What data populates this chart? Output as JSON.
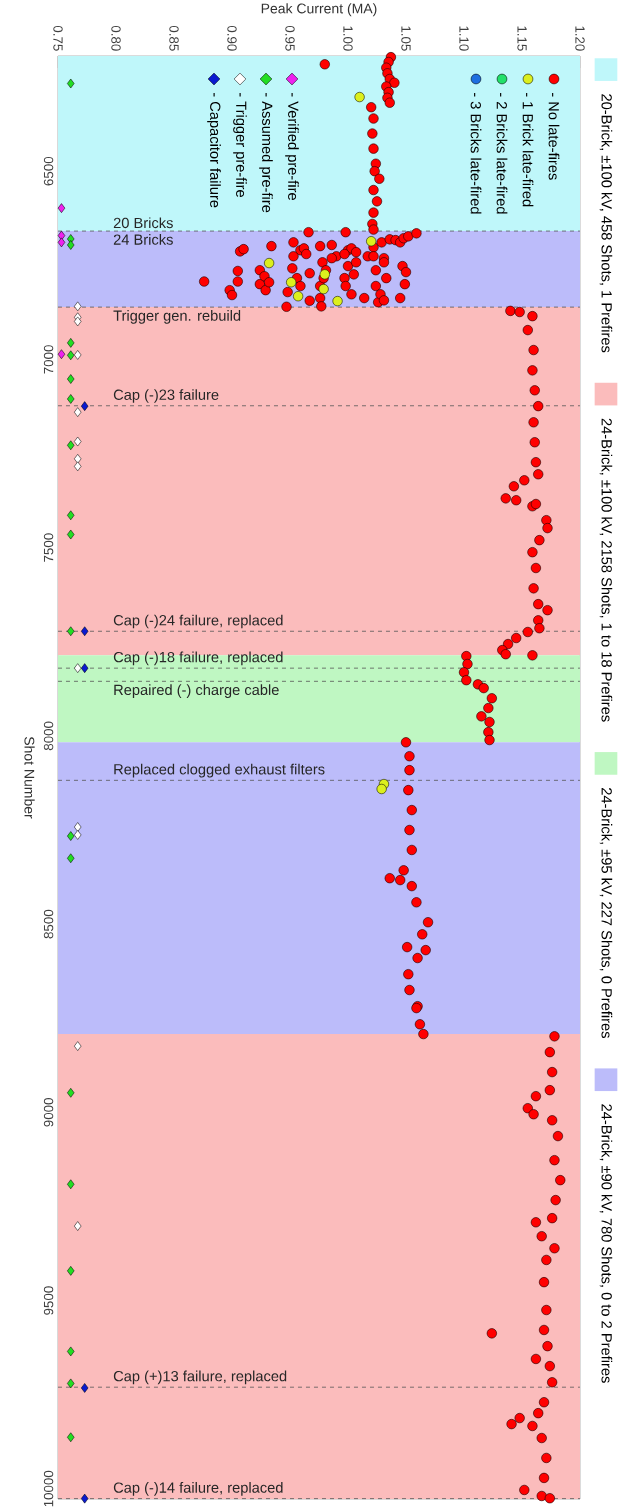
{
  "chart_data": {
    "type": "scatter",
    "xlabel": "Peak Current (MA)",
    "ylabel": "Shot Number",
    "xlim": [
      0.75,
      1.2
    ],
    "ylim": [
      10027,
      6194
    ],
    "xticks": [
      {
        "value": 0.75,
        "label": "0.75"
      },
      {
        "value": 0.8,
        "label": "0.80"
      },
      {
        "value": 0.85,
        "label": "0.85"
      },
      {
        "value": 0.9,
        "label": "0.90"
      },
      {
        "value": 0.95,
        "label": "0.95"
      },
      {
        "value": 1.0,
        "label": "1.00"
      },
      {
        "value": 1.05,
        "label": "1.05"
      },
      {
        "value": 1.1,
        "label": "1.10"
      },
      {
        "value": 1.15,
        "label": "1.15"
      },
      {
        "value": 1.2,
        "label": "1.20"
      }
    ],
    "yticks": [
      {
        "value": 6500,
        "label": "6500"
      },
      {
        "value": 7000,
        "label": "7000"
      },
      {
        "value": 7500,
        "label": "7500"
      },
      {
        "value": 8000,
        "label": "8000"
      },
      {
        "value": 8500,
        "label": "8500"
      },
      {
        "value": 9000,
        "label": "9000"
      },
      {
        "value": 9500,
        "label": "9500"
      },
      {
        "value": 10000,
        "label": "10000"
      }
    ],
    "legend": "top",
    "series": [
      {
        "name": "- No late-fires",
        "color": "#ff0000",
        "marker": "circle",
        "values": [
          6197,
          6210,
          6216,
          6225,
          6240,
          6255,
          6265,
          6275,
          6290,
          6305,
          6318,
          6330,
          6360,
          6400,
          6440,
          6480,
          6500,
          6520,
          6550,
          6580,
          6610,
          6640,
          6655,
          6662,
          6662,
          6713,
          6707,
          6699,
          6689,
          6710,
          6705,
          6720,
          6699,
          6696,
          6726,
          6710,
          6705,
          6715,
          6702,
          6689,
          6681,
          6683,
          6689,
          6678,
          6673,
          6665,
          6726,
          6731,
          6793,
          6816,
          6829,
          6765,
          6793,
          6763,
          6800,
          6779,
          6816,
          6795,
          6860,
          6821,
          6758,
          6726,
          6784,
          6805,
          6844,
          6771,
          6837,
          6859,
          6805,
          6742,
          6784,
          6763,
          6731,
          6720,
          6784,
          6805,
          6752,
          6827,
          6774,
          6742,
          6837,
          6726,
          6763,
          6805,
          6848,
          6827,
          6742,
          6784,
          6837,
          6752,
          6800,
          6768,
          6843,
          6871,
          6874,
          6885,
          6922,
          6975,
          7029,
          7082,
          7124,
          7167,
          7220,
          7273,
          7305,
          7321,
          7337,
          7369,
          7374,
          7390,
          7384,
          7427,
          7448,
          7480,
          7512,
          7554,
          7608,
          7650,
          7666,
          7693,
          7714,
          7724,
          7740,
          7756,
          7772,
          7783,
          7786,
          7788,
          7809,
          7831,
          7852,
          7863,
          7873,
          7900,
          7926,
          7948,
          7963,
          7990,
          8011,
          8017,
          8054,
          8091,
          8144,
          8197,
          8250,
          8303,
          8357,
          8378,
          8383,
          8399,
          8442,
          8495,
          8527,
          8561,
          8569,
          8590,
          8633,
          8675,
          8718,
          8723,
          8766,
          8792,
          8798,
          8840,
          8893,
          8941,
          8957,
          8989,
          9005,
          9021,
          9063,
          9127,
          9180,
          9233,
          9281,
          9292,
          9329,
          9361,
          9392,
          9451,
          9525,
          9578,
          9587,
          9621,
          9655,
          9674,
          9717,
          9770,
          9799,
          9812,
          9828,
          9833,
          9865,
          9918,
          9971,
          10003,
          10019,
          10025
        ],
        "x": [
          1.037,
          1.035,
          0.98,
          1.033,
          1.034,
          1.036,
          1.04,
          1.033,
          1.035,
          1.034,
          1.036,
          1.02,
          1.022,
          1.021,
          1.022,
          1.024,
          1.023,
          1.027,
          1.022,
          1.025,
          1.022,
          1.021,
          1.022,
          0.966,
          0.998,
          0.907,
          0.91,
          0.934,
          0.953,
          0.959,
          0.962,
          0.964,
          0.976,
          0.986,
          0.99,
          1.0,
          1.003,
          1.007,
          1.022,
          1.029,
          1.036,
          1.041,
          1.045,
          1.048,
          1.052,
          1.059,
          1.017,
          1.031,
          0.876,
          0.898,
          0.9,
          0.905,
          0.905,
          0.924,
          0.924,
          0.928,
          0.929,
          0.932,
          0.947,
          0.948,
          0.952,
          0.953,
          0.956,
          0.959,
          0.967,
          0.967,
          0.976,
          0.977,
          0.976,
          0.978,
          0.979,
          0.981,
          0.986,
          0.997,
          0.997,
          0.998,
          1.0,
          1.003,
          1.005,
          1.007,
          1.014,
          1.022,
          1.024,
          1.024,
          1.026,
          1.028,
          1.031,
          1.033,
          1.045,
          1.047,
          1.049,
          1.05,
          1.031,
          1.14,
          1.148,
          1.159,
          1.155,
          1.16,
          1.159,
          1.161,
          1.164,
          1.16,
          1.161,
          1.162,
          1.164,
          1.152,
          1.143,
          1.136,
          1.145,
          1.159,
          1.162,
          1.171,
          1.172,
          1.165,
          1.159,
          1.162,
          1.16,
          1.164,
          1.172,
          1.164,
          1.165,
          1.155,
          1.145,
          1.138,
          1.133,
          1.136,
          1.159,
          1.102,
          1.103,
          1.1,
          1.102,
          1.112,
          1.117,
          1.124,
          1.121,
          1.115,
          1.122,
          1.121,
          1.122,
          1.05,
          1.053,
          1.053,
          1.052,
          1.055,
          1.053,
          1.055,
          1.048,
          1.036,
          1.045,
          1.055,
          1.059,
          1.069,
          1.064,
          1.051,
          1.067,
          1.06,
          1.052,
          1.053,
          1.06,
          1.059,
          1.062,
          1.065,
          1.178,
          1.174,
          1.176,
          1.174,
          1.162,
          1.155,
          1.16,
          1.176,
          1.181,
          1.178,
          1.183,
          1.179,
          1.176,
          1.162,
          1.167,
          1.178,
          1.171,
          1.169,
          1.171,
          1.169,
          1.124,
          1.172,
          1.162,
          1.174,
          1.176,
          1.169,
          1.164,
          1.148,
          1.141,
          1.159,
          1.167,
          1.171,
          1.169,
          1.152,
          1.167,
          1.174
        ]
      },
      {
        "name": "- 1 Brick late-fired",
        "color": "#dcef1e",
        "marker": "circle",
        "values": [
          6303,
          6686,
          6744,
          6774,
          6795,
          6813,
          6832,
          6845,
          8128,
          8141
        ],
        "x": [
          1.01,
          1.02,
          0.932,
          0.98,
          0.951,
          0.979,
          0.957,
          0.991,
          1.031,
          1.029
        ]
      },
      {
        "name": "- 2 Bricks late-fired",
        "color": "#22e06a",
        "marker": "circle"
      },
      {
        "name": "- 3 Bricks late-fired",
        "color": "#1f6fe0",
        "marker": "circle"
      },
      {
        "name": "- Verified pre-fire",
        "color": "#ee22ee",
        "marker": "diamond",
        "values": [
          6598,
          6671,
          6689,
          6986
        ],
        "x": [
          0.753,
          0.753,
          0.753,
          0.753
        ]
      },
      {
        "name": "- Assumed pre-fire",
        "color": "#22dd22",
        "marker": "diamond",
        "values": [
          6267,
          6680,
          6696,
          6956,
          6989,
          7052,
          7105,
          7228,
          7414,
          7465,
          7722,
          8266,
          8325,
          8948,
          9191,
          9421,
          9635,
          9720,
          9863
        ],
        "x": [
          0.761,
          0.761,
          0.761,
          0.761,
          0.761,
          0.761,
          0.761,
          0.761,
          0.761,
          0.761,
          0.761,
          0.761,
          0.761,
          0.761,
          0.761,
          0.761,
          0.761,
          0.761,
          0.761
        ]
      },
      {
        "name": "- Trigger pre-fire",
        "color": "#ffffff",
        "marker": "diamond",
        "values": [
          6859,
          6888,
          6899,
          6988,
          7140,
          7218,
          7264,
          7284,
          7820,
          8242,
          8263,
          8824,
          9302
        ],
        "x": [
          0.767,
          0.767,
          0.767,
          0.767,
          0.767,
          0.767,
          0.767,
          0.767,
          0.767,
          0.767,
          0.767,
          0.767,
          0.767
        ]
      },
      {
        "name": "- Capacitor failure",
        "color": "#0a1ad0",
        "marker": "diamond",
        "values": [
          7124,
          7722,
          7820,
          9732,
          10026
        ],
        "x": [
          0.773,
          0.773,
          0.773,
          0.773,
          0.773
        ]
      }
    ],
    "bands": [
      {
        "axis": "y",
        "from": 6194,
        "to": 6659,
        "color": "#bff7fa",
        "label": "20-Brick, ±100 kV, 458 Shots, 1 Prefires"
      },
      {
        "axis": "y",
        "from": 6659,
        "to": 6861,
        "color": "#bcbcfa"
      },
      {
        "axis": "y",
        "from": 6861,
        "to": 7786,
        "color": "#fbbcbc",
        "label": "24-Brick, ±100 kV, 2158 Shots, 1 to 18 Prefires"
      },
      {
        "axis": "y",
        "from": 7786,
        "to": 8017,
        "color": "#bff7c2",
        "label": "24-Brick, ±95 kV, 227 Shots, 0 Prefires"
      },
      {
        "axis": "y",
        "from": 8017,
        "to": 8792,
        "color": "#bcbcfa",
        "label": "24-Brick, ±90 kV, 780 Shots, 0 to 2 Prefires"
      },
      {
        "axis": "y",
        "from": 8792,
        "to": 10027,
        "color": "#fbbcbc"
      }
    ],
    "ref_lines": [
      {
        "axis": "y",
        "value": 6659,
        "label": "20 Bricks",
        "color": "#555555",
        "line_style": "dashed"
      },
      {
        "axis": "y",
        "value": 6861,
        "label": "Trigger gen. rebuild",
        "color": "#555555",
        "line_style": "dashed"
      },
      {
        "axis": "y",
        "value": 7123,
        "label": "Cap (-)23 failure",
        "color": "#555555",
        "line_style": "dashed"
      },
      {
        "axis": "y",
        "value": 7722,
        "label": "Cap (-)24 failure, replaced",
        "color": "#555555",
        "line_style": "dashed"
      },
      {
        "axis": "y",
        "value": 7820,
        "label": "Cap (-)18 failure, replaced",
        "color": "#555555",
        "line_style": "dashed"
      },
      {
        "axis": "y",
        "value": 7855,
        "label": "Repaired (-) charge cable",
        "color": "#555555",
        "line_style": "dashed"
      },
      {
        "axis": "y",
        "value": 8118,
        "label": "Replaced clogged exhaust filters",
        "color": "#555555",
        "line_style": "dashed"
      },
      {
        "axis": "y",
        "value": 9730,
        "label": "Cap (+)13 failure, replaced",
        "color": "#555555",
        "line_style": "dashed"
      },
      {
        "axis": "y",
        "value": 10026,
        "label": "Cap (-)14 failure, replaced",
        "color": "#555555",
        "line_style": "dashed"
      }
    ],
    "annotations": [
      "24 Bricks"
    ]
  }
}
